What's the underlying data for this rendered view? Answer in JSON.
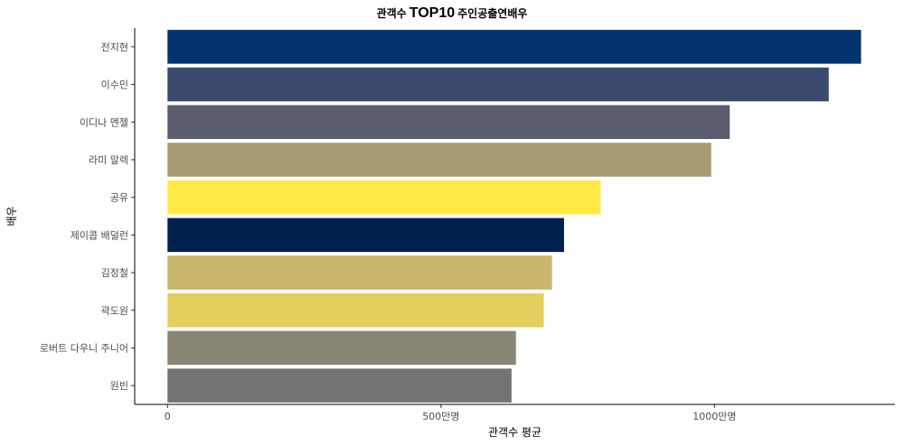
{
  "chart_data": {
    "type": "bar",
    "orientation": "horizontal",
    "title_prefix": "관객수",
    "title_emph": "TOP10",
    "title_suffix": "주인공출연배우",
    "xlabel": "관객수 평균",
    "ylabel": "배우",
    "categories": [
      "전지현",
      "이수민",
      "이디나 멘젤",
      "라미 말렉",
      "공유",
      "제이콥 배덜런",
      "김정철",
      "곽도원",
      "로버트 다우니 주니어",
      "원빈"
    ],
    "values": [
      12680000,
      12090000,
      10280000,
      9940000,
      7920000,
      7250000,
      7030000,
      6880000,
      6370000,
      6290000
    ],
    "colors": [
      "#00336e",
      "#3b4a6c",
      "#5a5d6e",
      "#a69c73",
      "#ffe945",
      "#00204d",
      "#c7b66c",
      "#e4ce5d",
      "#898677",
      "#727374"
    ],
    "xticks": [
      0,
      5000000,
      10000000
    ],
    "xtick_labels": [
      "0",
      "500만명",
      "1000만명"
    ],
    "xlim": [
      -600000,
      13300000
    ],
    "grid": false,
    "legend": "none"
  }
}
